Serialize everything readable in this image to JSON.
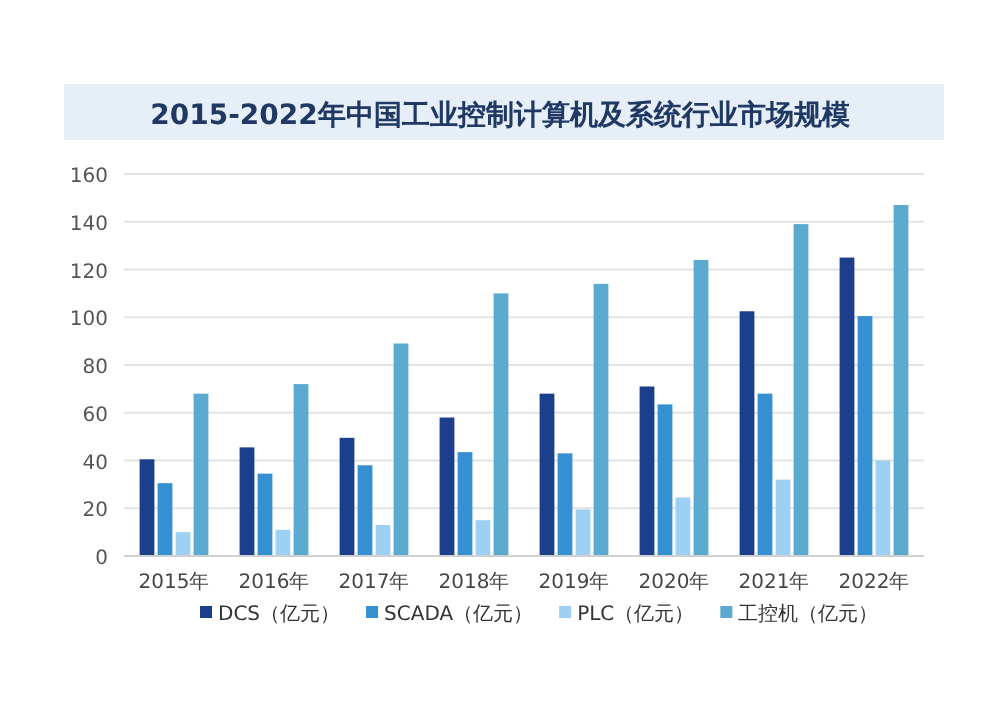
{
  "chart_data": {
    "type": "bar",
    "title": "2015-2022年中国工业控制计算机及系统行业市场规模",
    "categories": [
      "2015年",
      "2016年",
      "2017年",
      "2018年",
      "2019年",
      "2020年",
      "2021年",
      "2022年"
    ],
    "series": [
      {
        "name": "DCS（亿元）",
        "color": "#1c3f8c",
        "values": [
          40.5,
          45.5,
          49.5,
          58,
          68,
          71,
          102.5,
          125
        ]
      },
      {
        "name": "SCADA（亿元）",
        "color": "#3590d2",
        "values": [
          30.5,
          34.5,
          38,
          43.5,
          43,
          63.5,
          68,
          100.5
        ]
      },
      {
        "name": "PLC（亿元）",
        "color": "#9dd0f3",
        "values": [
          10,
          11,
          13,
          15,
          19.5,
          24.5,
          32,
          40
        ]
      },
      {
        "name": "工控机（亿元）",
        "color": "#5aa9cf",
        "values": [
          68,
          72,
          89,
          110,
          114,
          124,
          139,
          147
        ]
      }
    ],
    "ylim": [
      0,
      160
    ],
    "yticks": [
      0,
      20,
      40,
      60,
      80,
      100,
      120,
      140,
      160
    ],
    "grid": "y",
    "legend": "bottom"
  }
}
